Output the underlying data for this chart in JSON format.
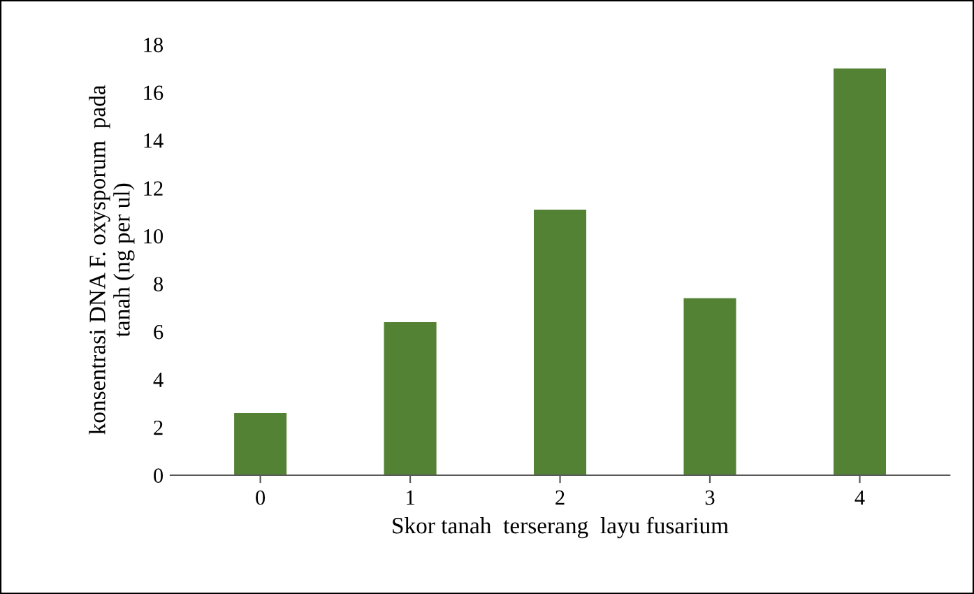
{
  "chart_data": {
    "type": "bar",
    "xlabel": "Skor tanah  terserang  layu fusarium",
    "ylabel": "konsentrasi DNA F. oxysporum  pada\ntanah (ng per ul)",
    "categories": [
      "0",
      "1",
      "2",
      "3",
      "4"
    ],
    "values": [
      2.6,
      6.4,
      11.1,
      7.4,
      17.0
    ],
    "color": "#548235",
    "ylim": [
      0,
      18
    ],
    "yticks": [
      0,
      2,
      4,
      6,
      8,
      10,
      12,
      14,
      16,
      18
    ],
    "grid": false,
    "legend": false
  }
}
